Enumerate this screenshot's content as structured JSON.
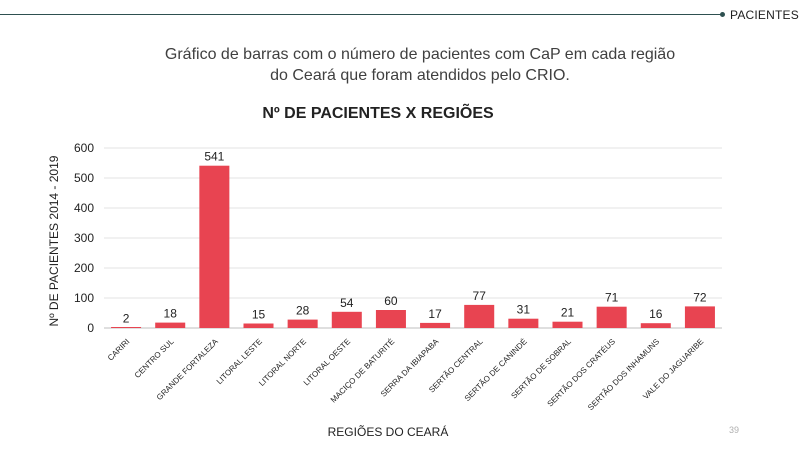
{
  "header": {
    "section_label": "PACIENTES"
  },
  "caption": {
    "line1": "Gráfico de barras com o número de pacientes com CaP em cada região",
    "line2": "do Ceará que foram atendidos pelo CRIO."
  },
  "footer": {
    "page_number": "39"
  },
  "chart_data": {
    "type": "bar",
    "title": "Nº DE PACIENTES X REGIÕES",
    "xlabel": "REGIÕES DO CEARÁ",
    "ylabel": "Nº DE PACIENTES  2014 - 2019",
    "ylim": [
      0,
      600
    ],
    "yticks": [
      0,
      100,
      200,
      300,
      400,
      500,
      600
    ],
    "grid": true,
    "legend": "none",
    "categories": [
      "CARIRI",
      "CENTRO SUL",
      "GRANDE FORTALEZA",
      "LITORAL LESTE",
      "LITORAL NORTE",
      "LITORAL OESTE",
      "MACIÇO DE BATURITÉ",
      "SERRA DA IBIAPABA",
      "SERTÃO CENTRAL",
      "SERTÃO DE CANINDÉ",
      "SERTÃO DE SOBRAL",
      "SERTÃO DOS CRATÉUS",
      "SERTÃO DOS INHAMUNS",
      "VALE DO JAGUARIBE"
    ],
    "values": [
      2,
      18,
      541,
      15,
      28,
      54,
      60,
      17,
      77,
      31,
      21,
      71,
      16,
      72
    ],
    "bar_color": "#e84451"
  }
}
